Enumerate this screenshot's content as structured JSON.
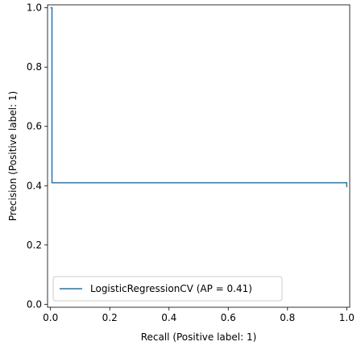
{
  "chart_data": {
    "type": "line",
    "title": "",
    "xlabel": "Recall (Positive label: 1)",
    "ylabel": "Precision (Positive label: 1)",
    "xlim": [
      -0.01,
      1.01
    ],
    "ylim": [
      -0.01,
      1.01
    ],
    "xticks": [
      "0.0",
      "0.2",
      "0.4",
      "0.6",
      "0.8",
      "1.0"
    ],
    "yticks": [
      "0.0",
      "0.2",
      "0.4",
      "0.6",
      "0.8",
      "1.0"
    ],
    "grid": false,
    "legend_position": "lower-left",
    "series": [
      {
        "name": "LogisticRegressionCV (AP = 0.41)",
        "color": "#1f77b4",
        "drawstyle": "steps",
        "x": [
          0.0,
          0.005,
          0.005,
          1.0,
          1.0
        ],
        "y": [
          1.0,
          1.0,
          0.41,
          0.41,
          0.395
        ]
      }
    ]
  }
}
